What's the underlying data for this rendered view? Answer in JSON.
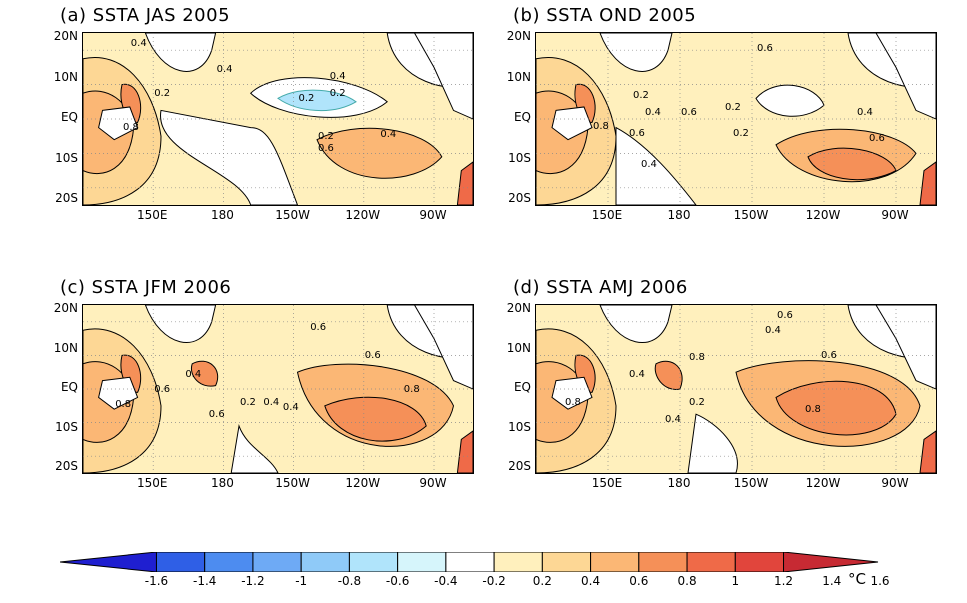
{
  "panels": [
    {
      "id": "a",
      "title": "(a)  SSTA  JAS  2005",
      "labels": [
        "0.4",
        "0.2",
        "0.4",
        "0.4",
        "0.2",
        "0.2",
        "0.8",
        "0.2",
        "0.4",
        "0.6"
      ]
    },
    {
      "id": "b",
      "title": "(b)  SSTA  OND  2005",
      "labels": [
        "0.6",
        "0.2",
        "0.4",
        "0.6",
        "0.8",
        "0.6",
        "0.2",
        "0.4",
        "0.2",
        "0.6",
        "0.4"
      ]
    },
    {
      "id": "c",
      "title": "(c)  SSTA  JFM  2006",
      "labels": [
        "0.6",
        "0.6",
        "0.4",
        "0.6",
        "0.8",
        "0.6",
        "0.2",
        "0.4",
        "0.4",
        "0.8"
      ]
    },
    {
      "id": "d",
      "title": "(d)  SSTA  AMJ  2006",
      "labels": [
        "0.6",
        "0.4",
        "0.6",
        "0.8",
        "0.4",
        "0.8",
        "0.2",
        "0.4",
        "0.8"
      ]
    }
  ],
  "axes": {
    "lat_labels": [
      "20N",
      "10N",
      "EQ",
      "10S",
      "20S"
    ],
    "lon_labels": [
      "150E",
      "180",
      "150W",
      "120W",
      "90W"
    ]
  },
  "colorbar": {
    "ticks": [
      "-1.6",
      "-1.4",
      "-1.2",
      "-1",
      "-0.8",
      "-0.6",
      "-0.4",
      "-0.2",
      "0.2",
      "0.4",
      "0.6",
      "0.8",
      "1",
      "1.2",
      "1.4",
      "1.6"
    ],
    "colors": [
      "#1f1fd0",
      "#2f5fe6",
      "#4d8cf0",
      "#6eaaf5",
      "#8fcaf8",
      "#b0e4fb",
      "#d6f5fb",
      "#ffffff",
      "#fff0bd",
      "#fdd795",
      "#fbb775",
      "#f59058",
      "#ef6a48",
      "#e1453c",
      "#c72a33"
    ],
    "unit": "°C"
  }
}
